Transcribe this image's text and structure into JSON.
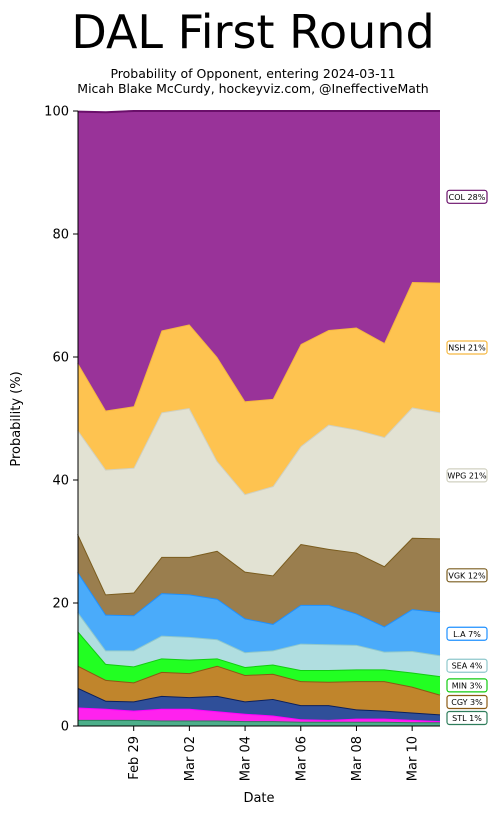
{
  "header": {
    "title": "DAL First Round",
    "subtitle_line1": "Probability of Opponent, entering 2024-03-11",
    "subtitle_line2": "Micah Blake McCurdy, hockeyviz.com, @IneffectiveMath"
  },
  "chart_data": {
    "type": "area",
    "stacked": true,
    "title": "DAL First Round",
    "subtitle": "Probability of Opponent, entering 2024-03-11\nMicah Blake McCurdy, hockeyviz.com, @IneffectiveMath",
    "xlabel": "Date",
    "ylabel": "Probability (%)",
    "ylim": [
      0,
      100
    ],
    "yticks": [
      0,
      20,
      40,
      60,
      80,
      100
    ],
    "x": [
      "2024-02-27",
      "2024-02-28",
      "2024-02-29",
      "2024-03-01",
      "2024-03-02",
      "2024-03-03",
      "2024-03-04",
      "2024-03-05",
      "2024-03-06",
      "2024-03-07",
      "2024-03-08",
      "2024-03-09",
      "2024-03-10",
      "2024-03-11"
    ],
    "xticks": [
      {
        "date": "2024-02-29",
        "label": "Feb 29"
      },
      {
        "date": "2024-03-02",
        "label": "Mar 02"
      },
      {
        "date": "2024-03-04",
        "label": "Mar 04"
      },
      {
        "date": "2024-03-06",
        "label": "Mar 06"
      },
      {
        "date": "2024-03-08",
        "label": "Mar 08"
      },
      {
        "date": "2024-03-10",
        "label": "Mar 10"
      }
    ],
    "grid": false,
    "legend_position": "right",
    "series": [
      {
        "name": "STL",
        "label": "STL  1%",
        "color": "#4CAF8A",
        "line": "#2E7D5B",
        "values": [
          1.0,
          1.0,
          1.0,
          0.9,
          0.9,
          0.9,
          0.8,
          0.8,
          0.7,
          0.7,
          0.7,
          0.7,
          0.6,
          0.6
        ]
      },
      {
        "name": "OTHER",
        "label": "",
        "color": "#FF22EE",
        "line": "#FF00FF",
        "values": [
          2.0,
          1.8,
          1.5,
          1.9,
          1.9,
          1.5,
          1.2,
          0.9,
          0.4,
          0.3,
          0.5,
          0.5,
          0.4,
          0.2
        ]
      },
      {
        "name": "STL-BLUE",
        "label": "",
        "color": "#2F4F99",
        "line": "#0B1F5C",
        "values": [
          3.2,
          1.3,
          1.5,
          2.1,
          1.9,
          2.5,
          2.0,
          2.7,
          2.3,
          2.4,
          1.5,
          1.3,
          1.2,
          1.1
        ]
      },
      {
        "name": "CGY",
        "label": "CGY  3%",
        "color": "#C0852C",
        "line": "#8B5A14",
        "values": [
          3.6,
          3.4,
          3.1,
          3.9,
          3.9,
          4.9,
          4.3,
          4.1,
          3.9,
          3.8,
          4.6,
          4.8,
          4.2,
          3.2
        ]
      },
      {
        "name": "MIN",
        "label": "MIN  3%",
        "color": "#22FF22",
        "line": "#11CC11",
        "values": [
          5.6,
          2.6,
          2.6,
          2.2,
          2.2,
          1.2,
          1.3,
          1.5,
          1.8,
          1.9,
          1.9,
          1.9,
          2.3,
          3.0
        ]
      },
      {
        "name": "SEA",
        "label": "SEA  4%",
        "color": "#B0DEE0",
        "line": "#8FC8CC",
        "values": [
          3.1,
          2.2,
          2.6,
          3.7,
          3.7,
          3.1,
          2.4,
          2.3,
          4.3,
          4.2,
          4.0,
          2.9,
          3.5,
          3.4
        ]
      },
      {
        "name": "L.A",
        "label": "L.A  7%",
        "color": "#4AABFA",
        "line": "#1E90FF",
        "values": [
          6.5,
          5.8,
          5.7,
          6.9,
          6.9,
          6.6,
          5.5,
          4.3,
          6.3,
          6.4,
          5.1,
          4.1,
          6.8,
          7.0
        ]
      },
      {
        "name": "VGK",
        "label": "VGK 12%",
        "color": "#9A7E4E",
        "line": "#7A5C1E",
        "values": [
          6.2,
          3.3,
          3.7,
          5.9,
          6.1,
          7.8,
          7.6,
          7.9,
          9.9,
          9.1,
          9.9,
          9.8,
          11.6,
          12.0
        ]
      },
      {
        "name": "WPG",
        "label": "WPG 21%",
        "color": "#E2E2D3",
        "line": "#D0D0C0",
        "values": [
          16.9,
          20.3,
          20.3,
          23.5,
          24.2,
          14.6,
          12.6,
          14.5,
          15.9,
          20.2,
          20.0,
          21.0,
          21.2,
          20.5
        ]
      },
      {
        "name": "NSH",
        "label": "NSH 21%",
        "color": "#FEC350",
        "line": "#F5B840",
        "values": [
          10.9,
          9.6,
          10.0,
          13.3,
          13.6,
          16.9,
          15.1,
          14.2,
          16.6,
          15.4,
          16.6,
          15.3,
          20.4,
          21.1
        ]
      },
      {
        "name": "COL",
        "label": "COL 28%",
        "color": "#993399",
        "line": "#6A0F6A",
        "values": [
          40.9,
          48.5,
          48.0,
          35.7,
          34.7,
          40.0,
          47.2,
          46.8,
          37.9,
          35.6,
          35.2,
          37.7,
          27.8,
          27.9
        ]
      }
    ]
  }
}
